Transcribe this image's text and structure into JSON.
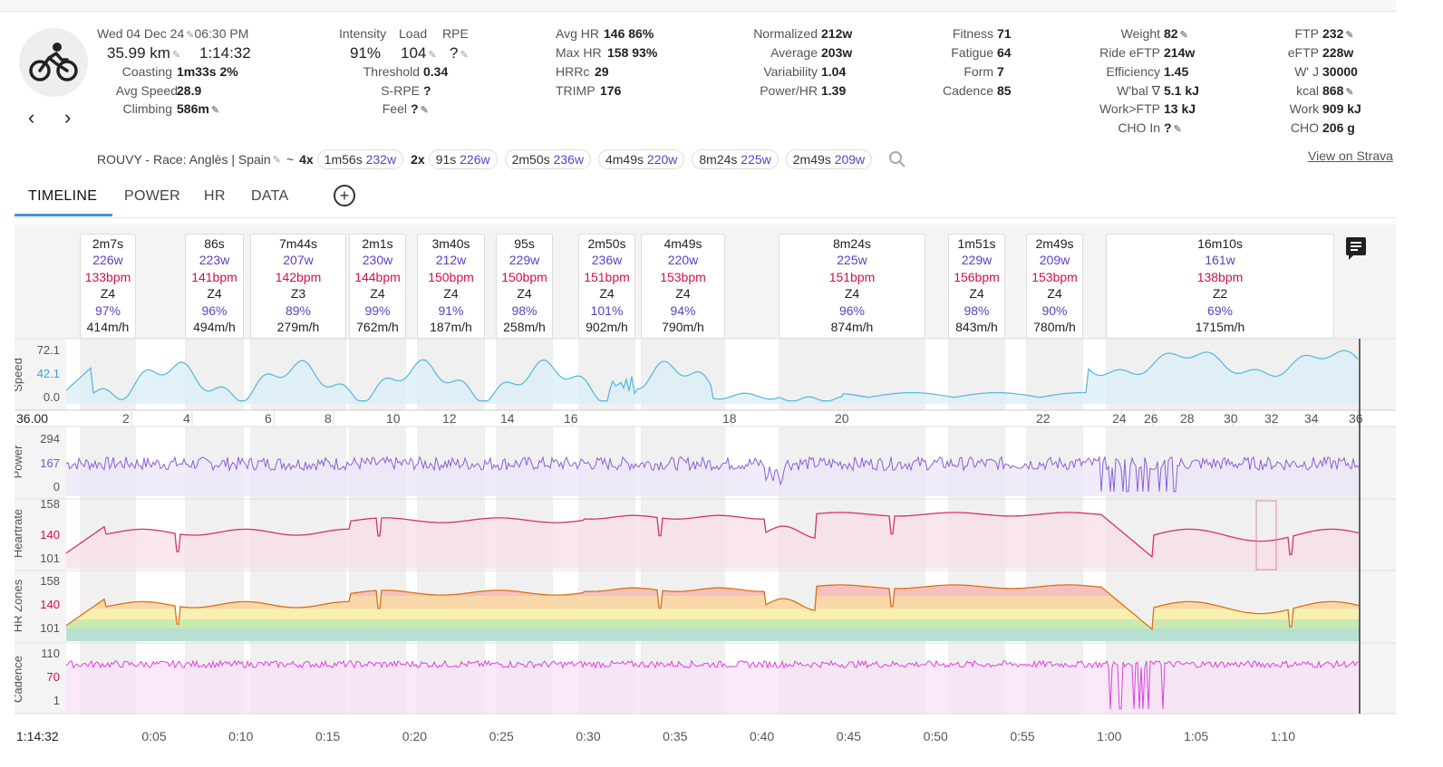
{
  "header": {
    "date": "Wed 04 Dec 24",
    "time": "06:30 PM",
    "distance": "35.99 km",
    "duration": "1:14:32",
    "coasting_label": "Coasting",
    "coasting_value": "1m33s  2%",
    "avg_speed_label": "Avg Speed",
    "avg_speed_value": "28.9",
    "climbing_label": "Climbing",
    "climbing_value": "586m"
  },
  "intensity": {
    "intensity_label": "Intensity",
    "load_label": "Load",
    "rpe_label": "RPE",
    "intensity_value": "91%",
    "load_value": "104",
    "rpe_value": "?",
    "threshold_label": "Threshold",
    "threshold_value": "0.34",
    "srpe_label": "S-RPE",
    "srpe_value": "?",
    "feel_label": "Feel",
    "feel_value": "?"
  },
  "hr": {
    "avg_hr_label": "Avg HR",
    "avg_hr_value": "146  86%",
    "max_hr_label": "Max HR",
    "max_hr_value": "158  93%",
    "hrrc_label": "HRRc",
    "hrrc_value": "29",
    "trimp_label": "TRIMP",
    "trimp_value": "176"
  },
  "power": {
    "normalized_label": "Normalized",
    "normalized_value": "212w",
    "average_label": "Average",
    "average_value": "203w",
    "variability_label": "Variability",
    "variability_value": "1.04",
    "powerhr_label": "Power/HR",
    "powerhr_value": "1.39"
  },
  "fitness": {
    "fitness_label": "Fitness",
    "fitness_value": "71",
    "fatigue_label": "Fatigue",
    "fatigue_value": "64",
    "form_label": "Form",
    "form_value": "7",
    "cadence_label": "Cadence",
    "cadence_value": "85"
  },
  "body": {
    "weight_label": "Weight",
    "weight_value": "82",
    "rideeftp_label": "Ride eFTP",
    "rideeftp_value": "214w",
    "efficiency_label": "Efficiency",
    "efficiency_value": "1.45",
    "wbal_label": "W'bal ∇",
    "wbal_value": "5.1 kJ",
    "workftp_label": "Work>FTP",
    "workftp_value": "13 kJ",
    "choin_label": "CHO In",
    "choin_value": "?"
  },
  "ftp": {
    "ftp_label": "FTP",
    "ftp_value": "232",
    "eftp_label": "eFTP",
    "eftp_value": "228w",
    "wj_label": "W' J",
    "wj_value": "30000",
    "kcal_label": "kcal",
    "kcal_value": "868",
    "work_label": "Work",
    "work_value": "909 kJ",
    "cho_label": "CHO",
    "cho_value": "206 g"
  },
  "intervals_row": {
    "name": "ROUVY - Race: Anglès | Spain",
    "tilde": "~",
    "g1_count": "4x",
    "g1_dur": "1m56s",
    "g1_w": "232w",
    "g2_count": "2x",
    "g2_dur": "91s",
    "g2_w": "226w",
    "p3_dur": "2m50s",
    "p3_w": "236w",
    "p4_dur": "4m49s",
    "p4_w": "220w",
    "p5_dur": "8m24s",
    "p5_w": "225w",
    "p6_dur": "2m49s",
    "p6_w": "209w",
    "strava": "View on Strava"
  },
  "tabs": [
    "TIMELINE",
    "POWER",
    "HR",
    "DATA"
  ],
  "interval_boxes": [
    {
      "t": "2m7s",
      "p": "226w",
      "h": "133bpm",
      "z": "Z4",
      "e": "97%",
      "c": "414m/h"
    },
    {
      "t": "86s",
      "p": "223w",
      "h": "141bpm",
      "z": "Z4",
      "e": "96%",
      "c": "494m/h"
    },
    {
      "t": "7m44s",
      "p": "207w",
      "h": "142bpm",
      "z": "Z3",
      "e": "89%",
      "c": "279m/h"
    },
    {
      "t": "2m1s",
      "p": "230w",
      "h": "144bpm",
      "z": "Z4",
      "e": "99%",
      "c": "762m/h"
    },
    {
      "t": "3m40s",
      "p": "212w",
      "h": "150bpm",
      "z": "Z4",
      "e": "91%",
      "c": "187m/h"
    },
    {
      "t": "95s",
      "p": "229w",
      "h": "150bpm",
      "z": "Z4",
      "e": "98%",
      "c": "258m/h"
    },
    {
      "t": "2m50s",
      "p": "236w",
      "h": "151bpm",
      "z": "Z4",
      "e": "101%",
      "c": "902m/h"
    },
    {
      "t": "4m49s",
      "p": "220w",
      "h": "153bpm",
      "z": "Z4",
      "e": "94%",
      "c": "790m/h"
    },
    {
      "t": "8m24s",
      "p": "225w",
      "h": "151bpm",
      "z": "Z4",
      "e": "96%",
      "c": "874m/h"
    },
    {
      "t": "1m51s",
      "p": "229w",
      "h": "156bpm",
      "z": "Z4",
      "e": "98%",
      "c": "843m/h"
    },
    {
      "t": "2m49s",
      "p": "209w",
      "h": "153bpm",
      "z": "Z4",
      "e": "90%",
      "c": "780m/h"
    },
    {
      "t": "16m10s",
      "p": "161w",
      "h": "138bpm",
      "z": "Z2",
      "e": "69%",
      "c": "1715m/h"
    }
  ],
  "chart_data": {
    "type": "line",
    "duration_label": "1:14:32",
    "distance_label": "36.00",
    "x_time_ticks": [
      "0:05",
      "0:10",
      "0:15",
      "0:20",
      "0:25",
      "0:30",
      "0:35",
      "0:40",
      "0:45",
      "0:50",
      "0:55",
      "1:00",
      "1:05",
      "1:10"
    ],
    "x_distance_ticks": [
      "2",
      "4",
      "6",
      "8",
      "10",
      "12",
      "14",
      "16",
      "18",
      "20",
      "22",
      "24",
      "26",
      "28",
      "30",
      "32",
      "34",
      "36"
    ],
    "panels": [
      {
        "name": "Speed",
        "ticks": [
          "72.1",
          "42.1",
          "0.0"
        ],
        "mid_color": "#3aa0d8",
        "color": "#5bbbe0"
      },
      {
        "name": "Power",
        "ticks": [
          "294",
          "167",
          "0"
        ],
        "mid_color": "#7b55d0",
        "color": "#8a5fd8"
      },
      {
        "name": "Heartrate",
        "ticks": [
          "158",
          "140",
          "101"
        ],
        "mid_color": "#d0104c",
        "color": "#d8306a"
      },
      {
        "name": "HR Zones",
        "ticks": [
          "158",
          "140",
          "101"
        ],
        "mid_color": "#d0104c",
        "color": "#d8306a"
      },
      {
        "name": "Cadence",
        "ticks": [
          "110",
          "70",
          "1"
        ],
        "mid_color": "#d0104c",
        "color": "#e040e0"
      }
    ]
  }
}
